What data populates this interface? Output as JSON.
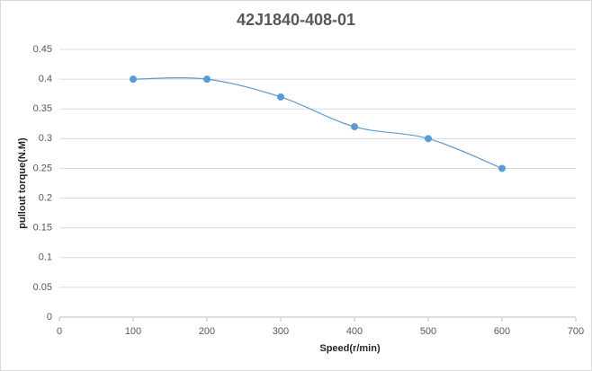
{
  "chart_data": {
    "type": "scatter",
    "title": "42J1840-408-01",
    "x_label": "Speed(r/min)",
    "y_label": "pullout torque(N.M)",
    "series": [
      {
        "name": "pullout torque",
        "color": "#5b9bd5",
        "x": [
          100,
          200,
          300,
          400,
          500,
          600
        ],
        "values": [
          0.4,
          0.4,
          0.37,
          0.32,
          0.3,
          0.25
        ]
      }
    ],
    "xlim": [
      0,
      700
    ],
    "xticks": [
      0,
      100,
      200,
      300,
      400,
      500,
      600,
      700
    ],
    "ylim": [
      0,
      0.45
    ],
    "yticks": [
      0,
      0.05,
      0.1,
      0.15,
      0.2,
      0.25,
      0.3,
      0.35,
      0.4,
      0.45
    ],
    "grid": true,
    "smooth": true
  }
}
